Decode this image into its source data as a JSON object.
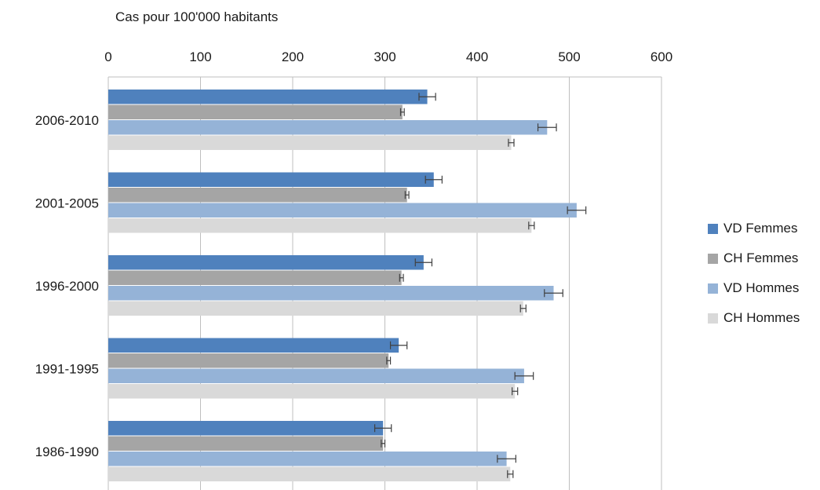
{
  "chart_data": {
    "type": "bar",
    "orientation": "horizontal",
    "unit_label": "Cas pour 100'000 habitants",
    "categories": [
      "1986-1990",
      "1991-1995",
      "1996-2000",
      "2001-2005",
      "2006-2010"
    ],
    "xlim": [
      0,
      600
    ],
    "x_ticks": [
      "0",
      "100",
      "200",
      "300",
      "400",
      "500",
      "600"
    ],
    "grid": "vertical",
    "axis_position": "top",
    "legend_position": "right",
    "series": [
      {
        "name": "VD Femmes",
        "color": "#4f81bd",
        "values": [
          298,
          315,
          342,
          353,
          346
        ],
        "error": [
          9,
          9,
          9,
          9,
          9
        ]
      },
      {
        "name": "CH Femmes",
        "color": "#a5a5a5",
        "values": [
          298,
          304,
          318,
          324,
          319
        ],
        "error": [
          2,
          2,
          2,
          2,
          2
        ]
      },
      {
        "name": "VD Hommes",
        "color": "#95b3d7",
        "values": [
          432,
          451,
          483,
          508,
          476
        ],
        "error": [
          10,
          10,
          10,
          10,
          10
        ]
      },
      {
        "name": "CH Hommes",
        "color": "#d9d9d9",
        "values": [
          436,
          441,
          450,
          459,
          437
        ],
        "error": [
          3,
          3,
          3,
          3,
          3
        ]
      }
    ]
  }
}
